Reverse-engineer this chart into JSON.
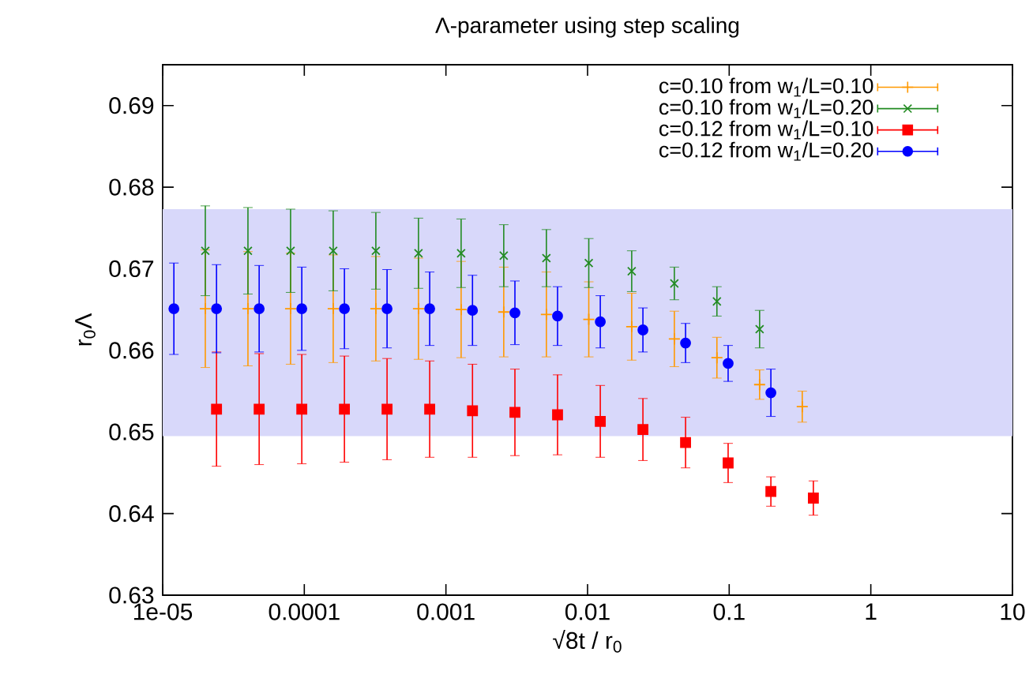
{
  "chart_data": {
    "type": "scatter",
    "title": "Λ-parameter using step scaling",
    "xlabel": "√8t / r$_{0}$",
    "ylabel": "r$_{0}$Λ",
    "log": "x",
    "xlim": [
      1e-05,
      10
    ],
    "ylim": [
      0.63,
      0.695
    ],
    "xticks": [
      {
        "value": 1e-05,
        "label": "1e-05"
      },
      0.0001,
      0.001,
      0.01,
      0.1,
      1,
      10
    ],
    "yticks": [
      0.63,
      0.64,
      0.65,
      0.66,
      0.67,
      0.68,
      0.69
    ],
    "legend": "top right",
    "bands": [
      {
        "axis": "y",
        "from": 0.6495,
        "to": 0.6773,
        "color": "#d8d8fa"
      }
    ],
    "series": [
      {
        "name": "c=0.10 from w$_{1}$/L=0.10",
        "color": "#ff9900",
        "marker": "plus",
        "x": [
          2e-05,
          4e-05,
          8e-05,
          0.00016,
          0.00032,
          0.00064,
          0.00128,
          0.00256,
          0.00512,
          0.0102,
          0.0205,
          0.041,
          0.0819,
          0.164,
          0.328
        ],
        "values": [
          0.6651,
          0.6651,
          0.6651,
          0.6651,
          0.6651,
          0.6651,
          0.665,
          0.6647,
          0.6644,
          0.6638,
          0.6629,
          0.6614,
          0.6591,
          0.6558,
          0.6531
        ],
        "errors": [
          0.0072,
          0.007,
          0.0068,
          0.0066,
          0.0064,
          0.0062,
          0.0059,
          0.0055,
          0.0052,
          0.0046,
          0.0041,
          0.0034,
          0.0025,
          0.0018,
          0.0019
        ]
      },
      {
        "name": "c=0.10 from w$_{1}$/L=0.20",
        "color": "#228b22",
        "marker": "cross",
        "x": [
          2e-05,
          4e-05,
          8e-05,
          0.00016,
          0.00032,
          0.00064,
          0.00128,
          0.00256,
          0.00512,
          0.0102,
          0.0205,
          0.041,
          0.0819,
          0.164
        ],
        "values": [
          0.6722,
          0.6722,
          0.6722,
          0.6722,
          0.6722,
          0.6719,
          0.6719,
          0.6716,
          0.6713,
          0.6707,
          0.6697,
          0.6682,
          0.666,
          0.6626
        ],
        "errors": [
          0.0055,
          0.0053,
          0.0051,
          0.0049,
          0.0047,
          0.0043,
          0.0042,
          0.0038,
          0.0035,
          0.003,
          0.0025,
          0.002,
          0.0018,
          0.0023
        ]
      },
      {
        "name": "c=0.12 from w$_{1}$/L=0.10",
        "color": "#ff0000",
        "marker": "square",
        "x": [
          2.4e-05,
          4.8e-05,
          9.6e-05,
          0.000192,
          0.000384,
          0.000768,
          0.00154,
          0.00307,
          0.00614,
          0.0123,
          0.0246,
          0.0492,
          0.0983,
          0.197,
          0.393
        ],
        "values": [
          0.6528,
          0.6528,
          0.6528,
          0.6528,
          0.6528,
          0.6528,
          0.6526,
          0.6524,
          0.6521,
          0.6513,
          0.6503,
          0.6487,
          0.6462,
          0.6427,
          0.6419
        ],
        "errors": [
          0.007,
          0.0068,
          0.0067,
          0.0065,
          0.0062,
          0.0059,
          0.0057,
          0.0053,
          0.0049,
          0.0044,
          0.0038,
          0.0031,
          0.0024,
          0.0018,
          0.0021
        ]
      },
      {
        "name": "c=0.12 from w$_{1}$/L=0.20",
        "color": "#0000ff",
        "marker": "circle",
        "x": [
          1.2e-05,
          2.4e-05,
          4.8e-05,
          9.6e-05,
          0.000192,
          0.000384,
          0.000768,
          0.00154,
          0.00307,
          0.00614,
          0.0123,
          0.0246,
          0.0492,
          0.0983,
          0.197
        ],
        "values": [
          0.6651,
          0.6651,
          0.6651,
          0.6651,
          0.6651,
          0.6651,
          0.6651,
          0.6649,
          0.6646,
          0.6642,
          0.6635,
          0.6625,
          0.6609,
          0.6584,
          0.6548
        ],
        "errors": [
          0.0056,
          0.0054,
          0.0053,
          0.0051,
          0.0049,
          0.0048,
          0.0045,
          0.0043,
          0.0039,
          0.0036,
          0.0032,
          0.0027,
          0.0024,
          0.0022,
          0.0029
        ]
      }
    ]
  }
}
